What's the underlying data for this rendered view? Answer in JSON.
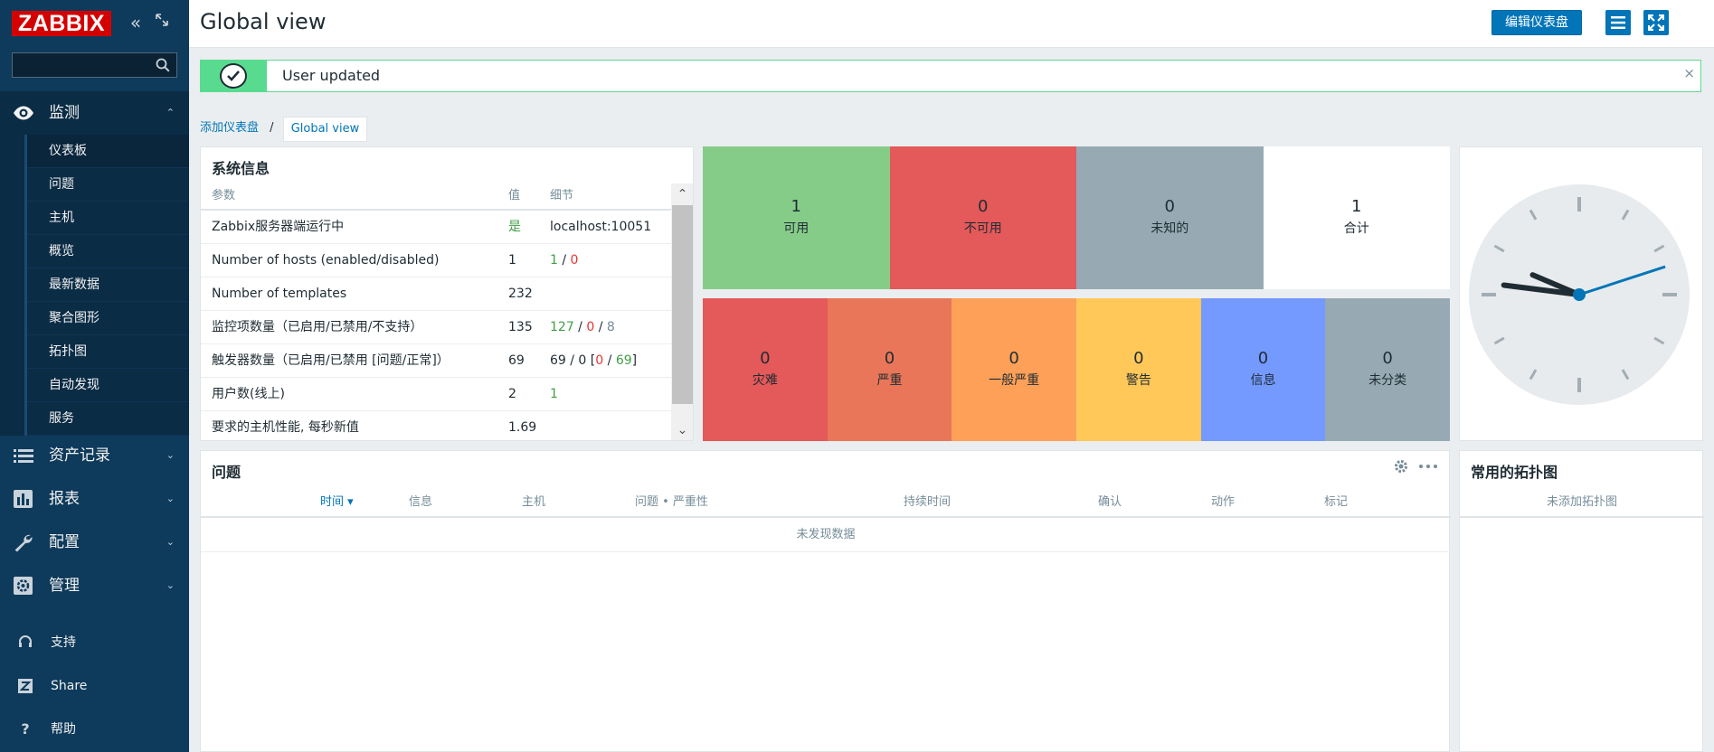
{
  "sidebar": {
    "logo": "ZABBIX",
    "search": {
      "value": "",
      "placeholder": ""
    },
    "sections": [
      {
        "label": "监测",
        "icon": "eye-icon",
        "expanded": true
      },
      {
        "label": "资产记录",
        "icon": "list-icon"
      },
      {
        "label": "报表",
        "icon": "bar-chart-icon"
      },
      {
        "label": "配置",
        "icon": "wrench-icon"
      },
      {
        "label": "管理",
        "icon": "gear-icon"
      }
    ],
    "monitor_items": [
      {
        "label": "仪表板",
        "active": true
      },
      {
        "label": "问题"
      },
      {
        "label": "主机"
      },
      {
        "label": "概览"
      },
      {
        "label": "最新数据"
      },
      {
        "label": "聚合图形"
      },
      {
        "label": "拓扑图"
      },
      {
        "label": "自动发现"
      },
      {
        "label": "服务"
      }
    ],
    "footer": [
      {
        "label": "支持",
        "icon": "headset-icon"
      },
      {
        "label": "Share",
        "icon": "share-z-icon"
      },
      {
        "label": "帮助",
        "icon": "question-icon"
      }
    ]
  },
  "header": {
    "title": "Global view",
    "edit_button": "编辑仪表盘"
  },
  "message": {
    "text": "User updated",
    "close": "×"
  },
  "breadcrumb": {
    "parent": "添加仪表盘",
    "separator": "/",
    "current": "Global view"
  },
  "system_info": {
    "title": "系统信息",
    "headers": [
      "参数",
      "值",
      "细节"
    ],
    "rows": [
      {
        "param": "Zabbix服务器端运行中",
        "value": "是",
        "detail": "localhost:10051"
      },
      {
        "param": "Number of hosts (enabled/disabled)",
        "value": "1",
        "d1": "1",
        "s1": " / ",
        "d2": "0"
      },
      {
        "param": "Number of templates",
        "value": "232"
      },
      {
        "param": "监控项数量（已启用/已禁用/不支持）",
        "value": "135",
        "d1": "127",
        "s1": " / ",
        "d2": "0",
        "s2": " / ",
        "d3": "8"
      },
      {
        "param": "触发器数量（已启用/已禁用 [问题/正常]）",
        "value": "69",
        "prefix": "69 / 0 [",
        "d2": "0",
        "s2": " / ",
        "d1": "69",
        "suffix": "]"
      },
      {
        "param": "用户数(线上)",
        "value": "2",
        "d1": "1"
      },
      {
        "param": "要求的主机性能, 每秒新值",
        "value": "1.69"
      }
    ]
  },
  "host_availability": [
    {
      "count": "1",
      "label": "可用",
      "color": "#86cc89"
    },
    {
      "count": "0",
      "label": "不可用",
      "color": "#e45959"
    },
    {
      "count": "0",
      "label": "未知的",
      "color": "#97aab3"
    },
    {
      "count": "1",
      "label": "合计",
      "color": "#ffffff"
    }
  ],
  "severity": [
    {
      "count": "0",
      "label": "灾难",
      "color": "#e45959"
    },
    {
      "count": "0",
      "label": "严重",
      "color": "#e97659"
    },
    {
      "count": "0",
      "label": "一般严重",
      "color": "#ffa059"
    },
    {
      "count": "0",
      "label": "警告",
      "color": "#ffc859"
    },
    {
      "count": "0",
      "label": "信息",
      "color": "#7499ff"
    },
    {
      "count": "0",
      "label": "未分类",
      "color": "#97aab3"
    }
  ],
  "clock": {
    "hour": 9,
    "minute": 46,
    "second": 12
  },
  "problems": {
    "title": "问题",
    "headers": [
      "时间 ▾",
      "信息",
      "主机",
      "问题 • 严重性",
      "持续时间",
      "确认",
      "动作",
      "标记"
    ],
    "empty": "未发现数据"
  },
  "fav_maps": {
    "title": "常用的拓扑图",
    "empty": "未添加拓扑图"
  }
}
